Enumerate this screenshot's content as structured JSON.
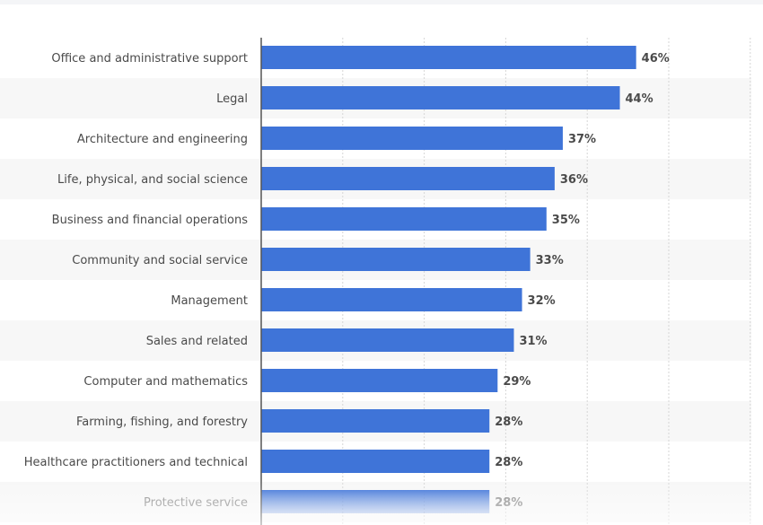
{
  "chart_data": {
    "type": "bar",
    "orientation": "horizontal",
    "categories": [
      "Office and administrative support",
      "Legal",
      "Architecture and engineering",
      "Life, physical, and social science",
      "Business and financial operations",
      "Community and social service",
      "Management",
      "Sales and related",
      "Computer and mathematics",
      "Farming, fishing, and forestry",
      "Healthcare practitioners and technical",
      "Protective service"
    ],
    "values": [
      46,
      44,
      37,
      36,
      35,
      33,
      32,
      31,
      29,
      28,
      28,
      28
    ],
    "value_labels": [
      "46%",
      "44%",
      "37%",
      "36%",
      "35%",
      "33%",
      "32%",
      "31%",
      "29%",
      "28%",
      "28%",
      "28%"
    ],
    "xlim": [
      0,
      60
    ],
    "grid": true,
    "bar_color": "#3f74d8",
    "stripe_color": "#f7f7f7"
  }
}
